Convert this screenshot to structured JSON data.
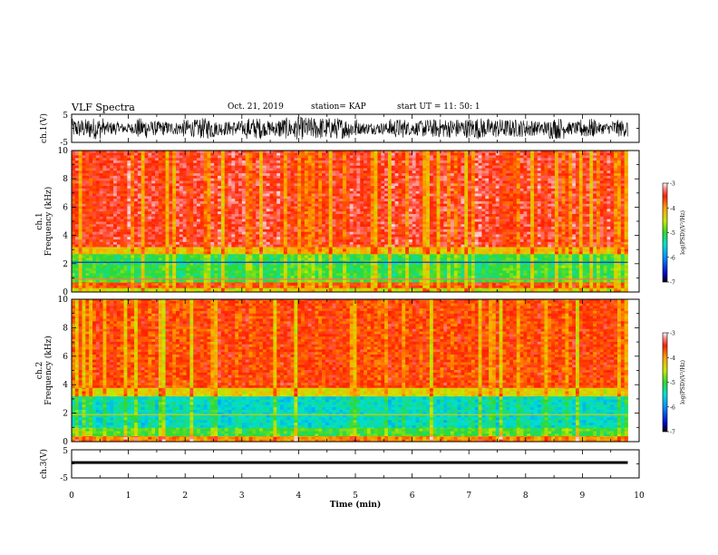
{
  "header": {
    "title": "VLF Spectra",
    "date": "Oct. 21, 2019",
    "station": "station= KAP",
    "start": "start  UT =   11: 50: 1"
  },
  "chart_data": [
    {
      "type": "line",
      "panel": "ch1-waveform",
      "ylabel": "ch.1(V)",
      "ylim": [
        -5,
        5
      ],
      "y_ticks": [
        "5",
        "-5"
      ],
      "xlim": [
        0,
        10
      ],
      "x_end": 9.8,
      "description_values": {
        "center": 0,
        "amplitude": 4.2
      }
    },
    {
      "type": "heatmap",
      "panel": "ch1-spectrogram",
      "ylabel": "ch.1\nFrequency (kHz)",
      "ylim": [
        0,
        10
      ],
      "y_ticks": [
        "0",
        "2",
        "4",
        "6",
        "8",
        "10"
      ],
      "xlim": [
        0,
        10
      ],
      "x_end": 9.8,
      "colorbar": {
        "label": "log(PSD)(V²/Hz)",
        "range": [
          -7,
          -3
        ],
        "ticks": [
          "-3",
          "-4",
          "-5",
          "-6",
          "-7"
        ]
      },
      "bands": [
        {
          "f_from": 0.0,
          "f_to": 0.3,
          "level": -4.5
        },
        {
          "f_from": 0.3,
          "f_to": 0.7,
          "level": -3.6
        },
        {
          "f_from": 0.7,
          "f_to": 1.0,
          "level": -5.0
        },
        {
          "f_from": 1.0,
          "f_to": 2.7,
          "level": -5.1
        },
        {
          "f_from": 2.7,
          "f_to": 3.2,
          "level": -4.3
        },
        {
          "f_from": 3.2,
          "f_to": 10.0,
          "level": -3.4
        }
      ],
      "lines": [
        {
          "f": 2.1,
          "level": -6.4
        },
        {
          "f": 0.9,
          "level": -3.3
        }
      ]
    },
    {
      "type": "heatmap",
      "panel": "ch2-spectrogram",
      "ylabel": "ch.2\nFrequency (kHz)",
      "ylim": [
        0,
        10
      ],
      "y_ticks": [
        "0",
        "2",
        "4",
        "6",
        "8",
        "10"
      ],
      "xlim": [
        0,
        10
      ],
      "x_end": 9.8,
      "colorbar": {
        "label": "log(PSD)(V²/Hz)",
        "range": [
          -7,
          -3
        ],
        "ticks": [
          "-3",
          "-4",
          "-5",
          "-6",
          "-7"
        ]
      },
      "bands": [
        {
          "f_from": 0.0,
          "f_to": 0.4,
          "level": -4.0
        },
        {
          "f_from": 0.4,
          "f_to": 1.0,
          "level": -5.0
        },
        {
          "f_from": 1.0,
          "f_to": 3.2,
          "level": -5.5
        },
        {
          "f_from": 3.2,
          "f_to": 3.8,
          "level": -4.4
        },
        {
          "f_from": 3.8,
          "f_to": 10.0,
          "level": -3.6
        }
      ],
      "lines": [
        {
          "f": 1.9,
          "level": -4.3
        }
      ]
    },
    {
      "type": "line",
      "panel": "ch3-waveform",
      "ylabel": "ch.3(V)",
      "ylim": [
        -5,
        5
      ],
      "y_ticks": [
        "5",
        "-5"
      ],
      "xlim": [
        0,
        10
      ],
      "x_end": 9.8,
      "description_values": {
        "center": 0.7,
        "amplitude": 0.25
      }
    }
  ],
  "x_axis": {
    "label": "Time (min)",
    "ticks": [
      "0",
      "1",
      "2",
      "3",
      "4",
      "5",
      "6",
      "7",
      "8",
      "9",
      "10"
    ]
  }
}
